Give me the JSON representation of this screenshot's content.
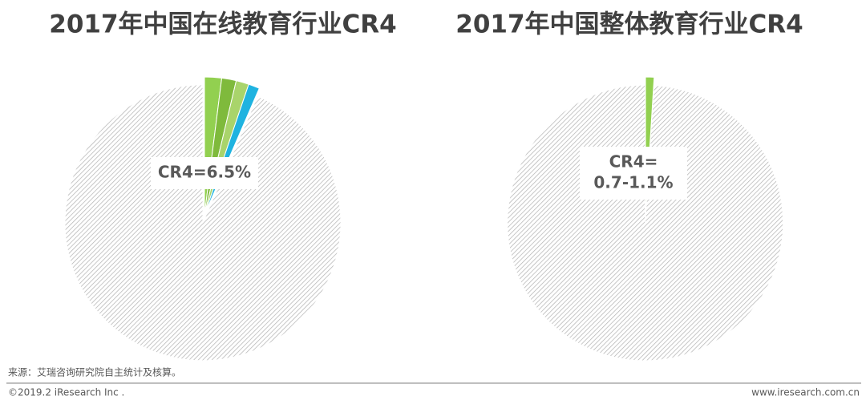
{
  "chart_data": [
    {
      "type": "pie",
      "title": "2017年中国在线教育行业CR4",
      "values": [
        2.0,
        1.7,
        1.5,
        1.3,
        93.5
      ],
      "colors": [
        "#92d050",
        "#7fba3c",
        "#a9d46b",
        "#1fb3e0",
        "#bfbfbf"
      ],
      "hatched": [
        false,
        false,
        false,
        false,
        true
      ],
      "label_lines": [
        "CR4=6.5%"
      ]
    },
    {
      "type": "pie",
      "title": "2017年中国整体教育行业CR4",
      "values": [
        1,
        99
      ],
      "colors": [
        "#92d050",
        "#bfbfbf"
      ],
      "hatched": [
        false,
        true
      ],
      "label_lines": [
        "CR4=",
        "0.7-1.1%"
      ]
    }
  ],
  "footer": {
    "source": "来源：艾瑞咨询研究院自主统计及核算。",
    "copyright": "©2019.2 iResearch Inc .",
    "url": "www.iresearch.com.cn"
  }
}
